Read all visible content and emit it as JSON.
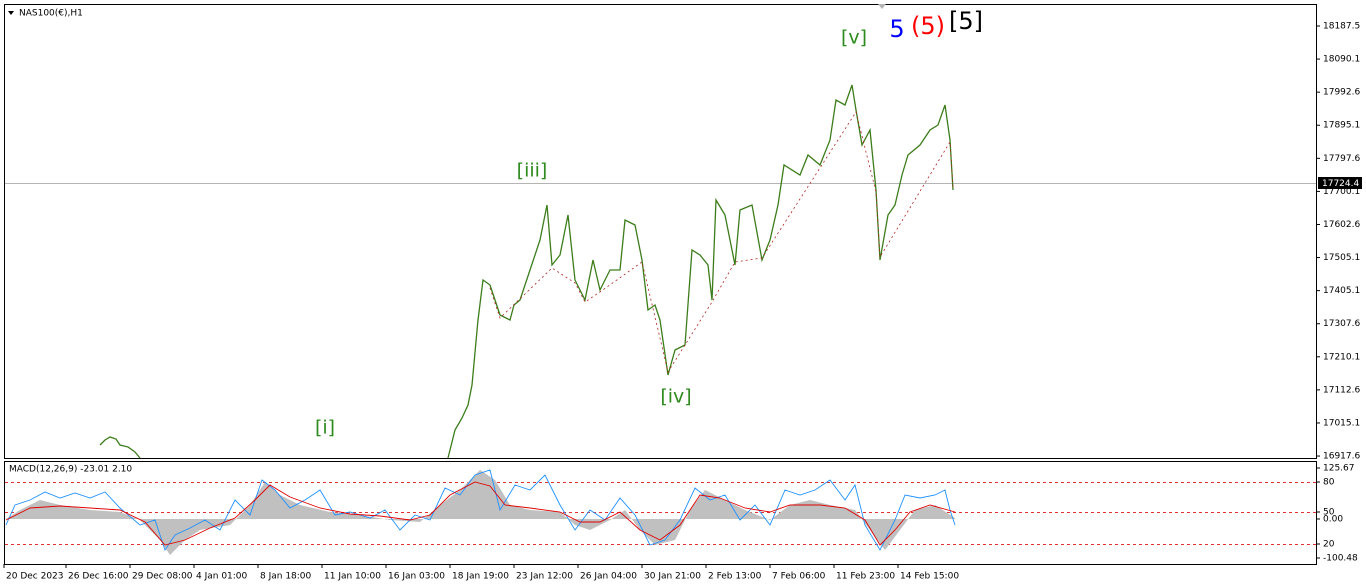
{
  "chart": {
    "symbol": "NAS100(€),H1",
    "wave_labels": [
      {
        "text": "[i]",
        "color": "#2e8b1e"
      },
      {
        "text": "[iii]",
        "color": "#2e8b1e"
      },
      {
        "text": "[iv]",
        "color": "#2e8b1e"
      },
      {
        "text": "[v]",
        "color": "#2e8b1e"
      },
      {
        "text": "5",
        "color": "#0000ff"
      },
      {
        "text": "(5)",
        "color": "#ff0000"
      },
      {
        "text": "[5]",
        "color": "#000000"
      }
    ],
    "price_axis": [
      "18187.5",
      "18090.1",
      "17992.6",
      "17895.1",
      "17797.6",
      "17700.1",
      "17602.6",
      "17505.1",
      "17405.1",
      "17307.6",
      "17210.1",
      "17112.6",
      "17015.1",
      "16917.6"
    ],
    "current_price": "17724.4",
    "time_axis": [
      "20 Dec 2023",
      "26 Dec 16:00",
      "29 Dec 08:00",
      "4 Jan 01:00",
      "8 Jan 18:00",
      "11 Jan 10:00",
      "16 Jan 03:00",
      "18 Jan 19:00",
      "23 Jan 12:00",
      "26 Jan 04:00",
      "30 Jan 21:00",
      "2 Feb 13:00",
      "7 Feb 06:00",
      "11 Feb 23:00",
      "14 Feb 15:00"
    ]
  },
  "indicator": {
    "label": "MACD(12,26,9) -23.01 2.10",
    "axis": [
      "125.67",
      "80",
      "50",
      "0.00",
      "20",
      "-100.48"
    ]
  }
}
